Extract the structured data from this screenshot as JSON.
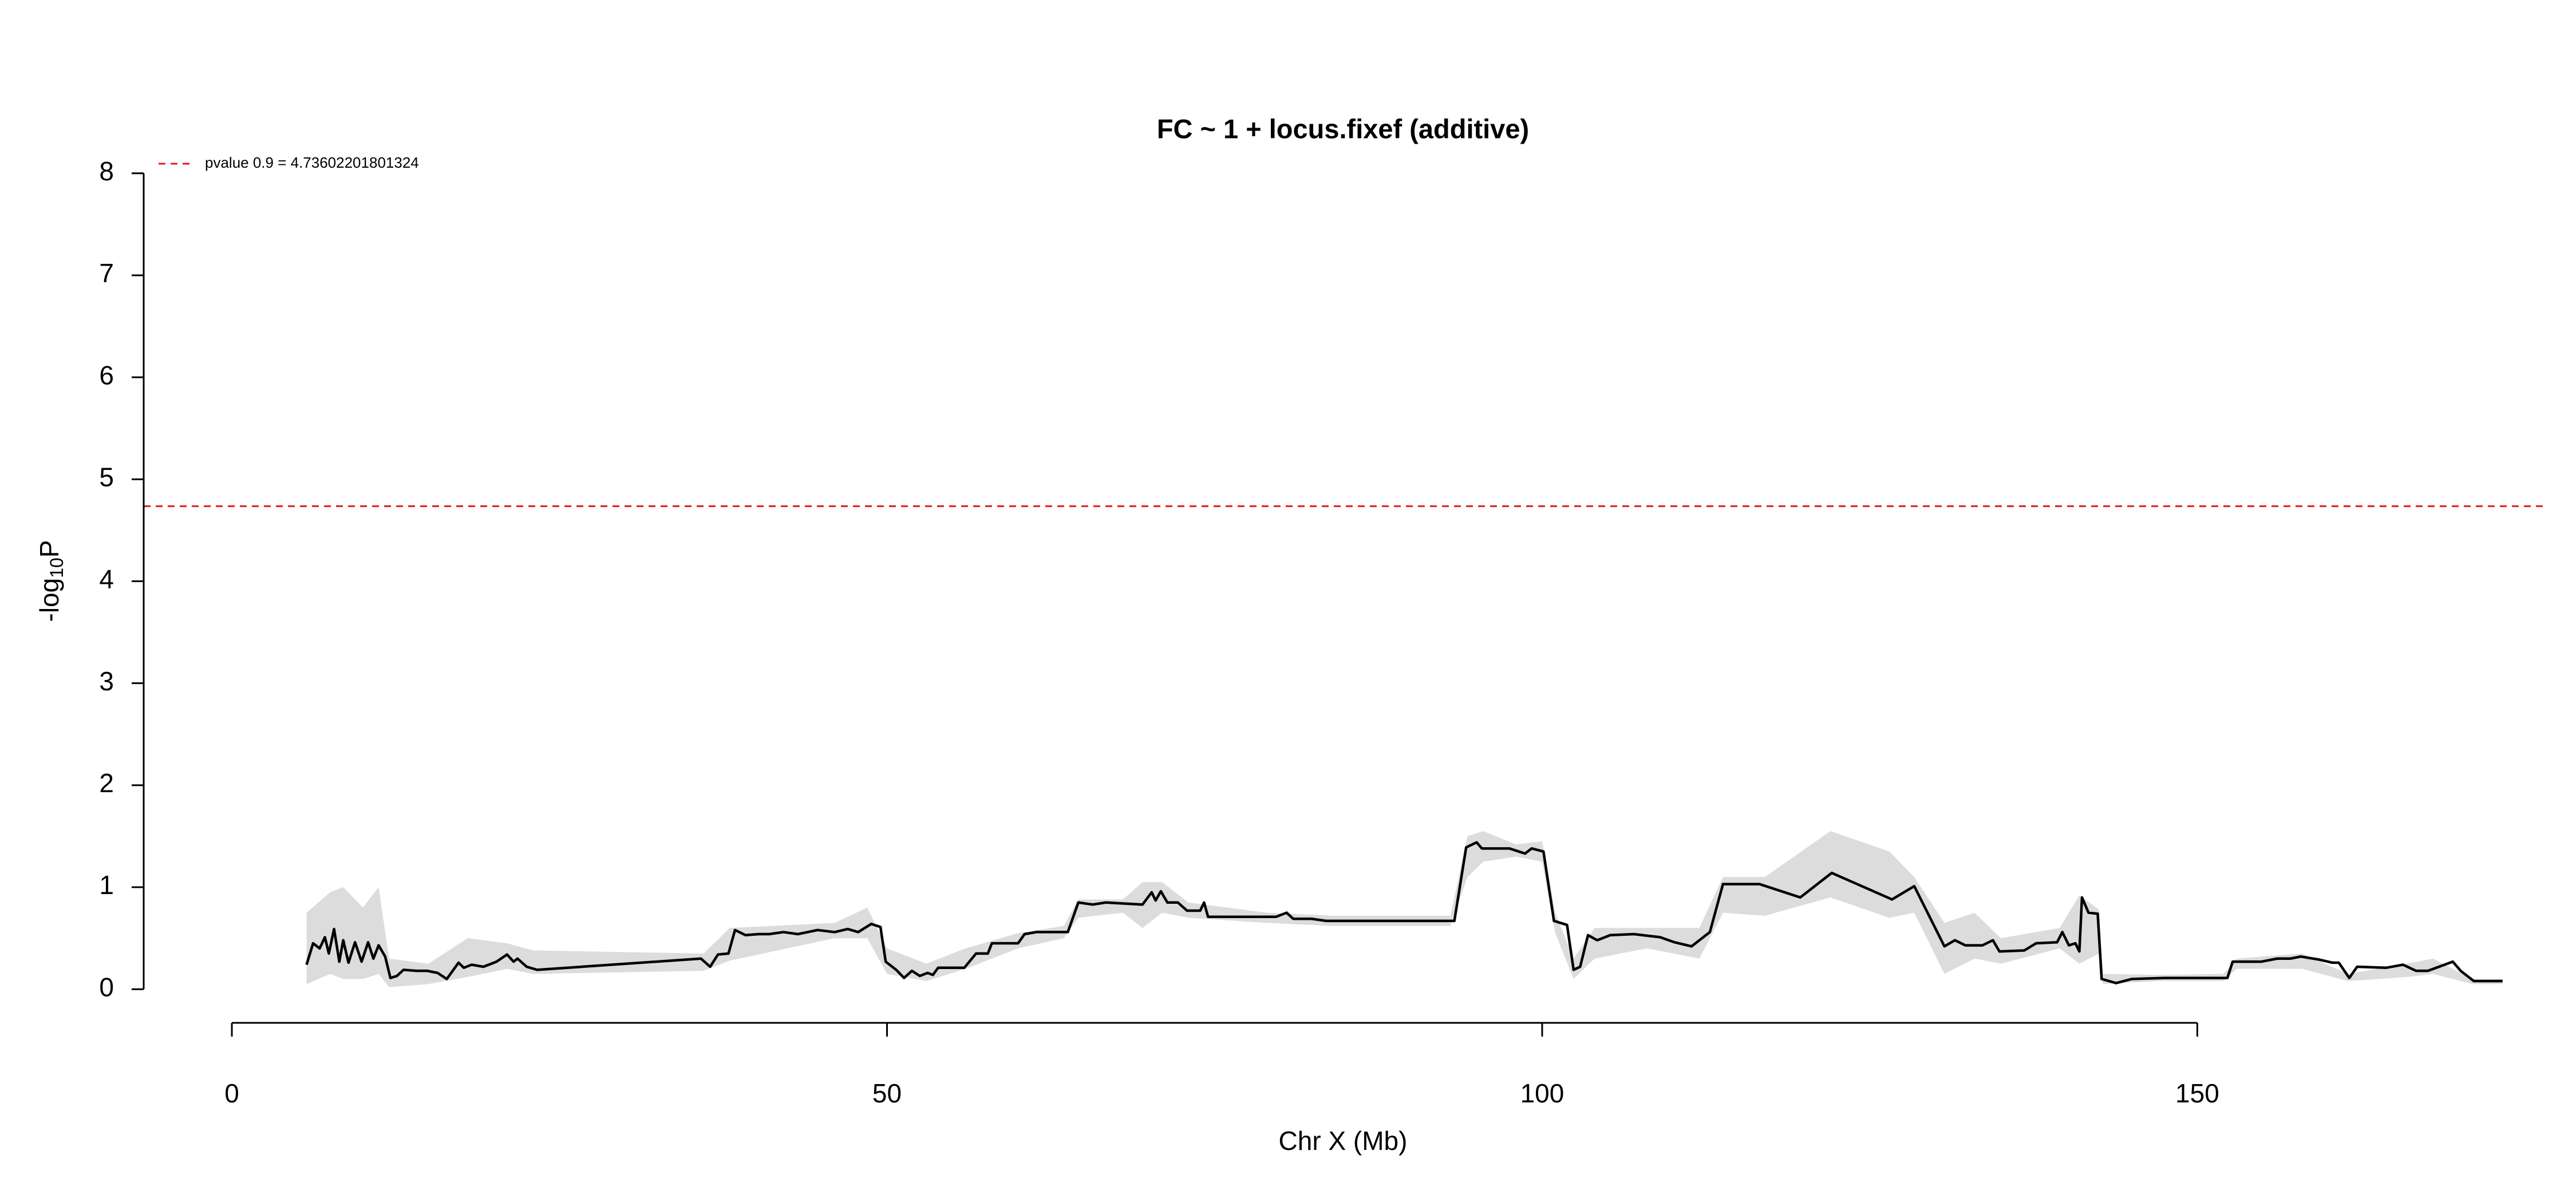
{
  "chart_data": {
    "type": "line",
    "title": "FC ~ 1 + locus.fixef (additive)",
    "xlabel": "Chr X (Mb)",
    "ylabel": [
      "-log",
      "10",
      "P"
    ],
    "xlim": [
      -6.73,
      176.5
    ],
    "ylim": [
      -0.33,
      8.33
    ],
    "xticks": [
      0,
      50,
      100,
      150
    ],
    "yticks": [
      0,
      1,
      2,
      3,
      4,
      5,
      6,
      7,
      8
    ],
    "threshold": {
      "label": "pvalue 0.9 = 4.73602201801324",
      "value": 4.73602201801324,
      "color": "#e41a1c"
    },
    "line_color": "#000000",
    "band_color": "#dcdcdc",
    "x": [
      5.7,
      6.2,
      6.7,
      7.1,
      7.4,
      7.8,
      8.2,
      8.5,
      8.9,
      9.4,
      9.9,
      10.4,
      10.8,
      11.2,
      11.7,
      12.1,
      12.6,
      13.1,
      14.1,
      14.9,
      15.7,
      16.4,
      17.3,
      17.7,
      18.3,
      19.2,
      20.2,
      21.0,
      21.5,
      21.8,
      22.5,
      23.3,
      35.8,
      36.5,
      37.1,
      37.9,
      38.4,
      39.2,
      40.2,
      41.0,
      42.1,
      43.2,
      44.7,
      46.0,
      47.0,
      47.8,
      48.8,
      49.5,
      49.9,
      50.7,
      51.3,
      51.9,
      52.5,
      53.1,
      53.5,
      53.9,
      55.9,
      56.8,
      57.7,
      58.0,
      60.0,
      60.5,
      61.4,
      63.8,
      64.6,
      65.7,
      66.7,
      69.5,
      70.2,
      70.5,
      70.9,
      71.4,
      72.2,
      72.9,
      73.9,
      74.2,
      74.5,
      79.7,
      80.5,
      81.0,
      82.4,
      83.5,
      93.3,
      94.2,
      95.0,
      95.4,
      97.5,
      98.7,
      99.2,
      100.1,
      100.9,
      101.9,
      102.4,
      102.9,
      103.5,
      104.2,
      105.2,
      107.0,
      109.0,
      110.1,
      111.4,
      112.8,
      113.8,
      116.6,
      119.7,
      122.1,
      126.7,
      128.4,
      130.7,
      131.5,
      132.3,
      133.6,
      134.4,
      134.9,
      136.8,
      137.7,
      139.3,
      139.7,
      140.2,
      140.7,
      141.0,
      141.2,
      141.7,
      142.4,
      142.7,
      143.8,
      145.0,
      147.5,
      152.3,
      152.7,
      154.9,
      156.1,
      157.1,
      157.9,
      159.3,
      160.3,
      160.8,
      161.6,
      162.2,
      164.4,
      165.7,
      166.7,
      167.6,
      169.5,
      170.1,
      171.1,
      173.3
    ],
    "values": [
      0.24,
      0.45,
      0.4,
      0.51,
      0.35,
      0.59,
      0.27,
      0.48,
      0.26,
      0.46,
      0.27,
      0.46,
      0.3,
      0.43,
      0.32,
      0.11,
      0.13,
      0.19,
      0.18,
      0.18,
      0.16,
      0.1,
      0.26,
      0.21,
      0.24,
      0.22,
      0.27,
      0.34,
      0.27,
      0.3,
      0.22,
      0.19,
      0.3,
      0.22,
      0.34,
      0.35,
      0.58,
      0.53,
      0.54,
      0.54,
      0.56,
      0.54,
      0.58,
      0.56,
      0.59,
      0.56,
      0.64,
      0.61,
      0.27,
      0.19,
      0.11,
      0.18,
      0.13,
      0.16,
      0.14,
      0.21,
      0.21,
      0.35,
      0.35,
      0.45,
      0.45,
      0.54,
      0.56,
      0.56,
      0.85,
      0.83,
      0.85,
      0.83,
      0.95,
      0.87,
      0.96,
      0.85,
      0.85,
      0.77,
      0.77,
      0.85,
      0.71,
      0.71,
      0.75,
      0.69,
      0.69,
      0.67,
      0.67,
      1.39,
      1.44,
      1.38,
      1.38,
      1.33,
      1.38,
      1.35,
      0.67,
      0.63,
      0.19,
      0.22,
      0.53,
      0.48,
      0.53,
      0.54,
      0.51,
      0.46,
      0.42,
      0.56,
      1.03,
      1.03,
      0.9,
      1.14,
      0.88,
      1.01,
      0.42,
      0.48,
      0.43,
      0.43,
      0.48,
      0.37,
      0.38,
      0.45,
      0.46,
      0.56,
      0.43,
      0.45,
      0.37,
      0.9,
      0.75,
      0.74,
      0.1,
      0.06,
      0.1,
      0.11,
      0.11,
      0.27,
      0.27,
      0.3,
      0.3,
      0.32,
      0.29,
      0.26,
      0.26,
      0.11,
      0.22,
      0.21,
      0.24,
      0.18,
      0.18,
      0.27,
      0.18,
      0.08,
      0.08
    ],
    "band": {
      "x": [
        5.7,
        7.5,
        8.5,
        10,
        11.2,
        12,
        15,
        18,
        21,
        23,
        36,
        38,
        46,
        48.5,
        50,
        53,
        56,
        60,
        63.5,
        64.6,
        68,
        69.5,
        71,
        73,
        79,
        84,
        93,
        94.3,
        95.5,
        98,
        100,
        101,
        102.4,
        104,
        108,
        112,
        113.8,
        117,
        122,
        126.5,
        128.4,
        130.7,
        133,
        135,
        139.5,
        141,
        142.5,
        142.8,
        147,
        152,
        153,
        158,
        161.5,
        166,
        168,
        171,
        173.3
      ],
      "upper": [
        0.75,
        0.95,
        1.0,
        0.8,
        1.0,
        0.3,
        0.25,
        0.5,
        0.45,
        0.38,
        0.35,
        0.6,
        0.65,
        0.8,
        0.4,
        0.25,
        0.4,
        0.55,
        0.62,
        0.88,
        0.88,
        1.05,
        1.05,
        0.85,
        0.75,
        0.72,
        0.72,
        1.5,
        1.55,
        1.42,
        1.45,
        0.75,
        0.3,
        0.6,
        0.6,
        0.6,
        1.1,
        1.1,
        1.55,
        1.35,
        1.1,
        0.65,
        0.75,
        0.5,
        0.6,
        0.92,
        0.78,
        0.15,
        0.14,
        0.15,
        0.3,
        0.35,
        0.15,
        0.25,
        0.3,
        0.1,
        0.1
      ],
      "lower": [
        0.05,
        0.15,
        0.1,
        0.1,
        0.15,
        0.02,
        0.05,
        0.12,
        0.2,
        0.15,
        0.18,
        0.28,
        0.5,
        0.5,
        0.15,
        0.08,
        0.2,
        0.4,
        0.5,
        0.7,
        0.75,
        0.6,
        0.75,
        0.7,
        0.65,
        0.62,
        0.62,
        1.1,
        1.25,
        1.3,
        1.25,
        0.55,
        0.1,
        0.3,
        0.4,
        0.3,
        0.75,
        0.72,
        0.9,
        0.7,
        0.75,
        0.15,
        0.3,
        0.25,
        0.4,
        0.25,
        0.35,
        0.05,
        0.08,
        0.08,
        0.2,
        0.2,
        0.08,
        0.12,
        0.15,
        0.05,
        0.05
      ]
    }
  }
}
